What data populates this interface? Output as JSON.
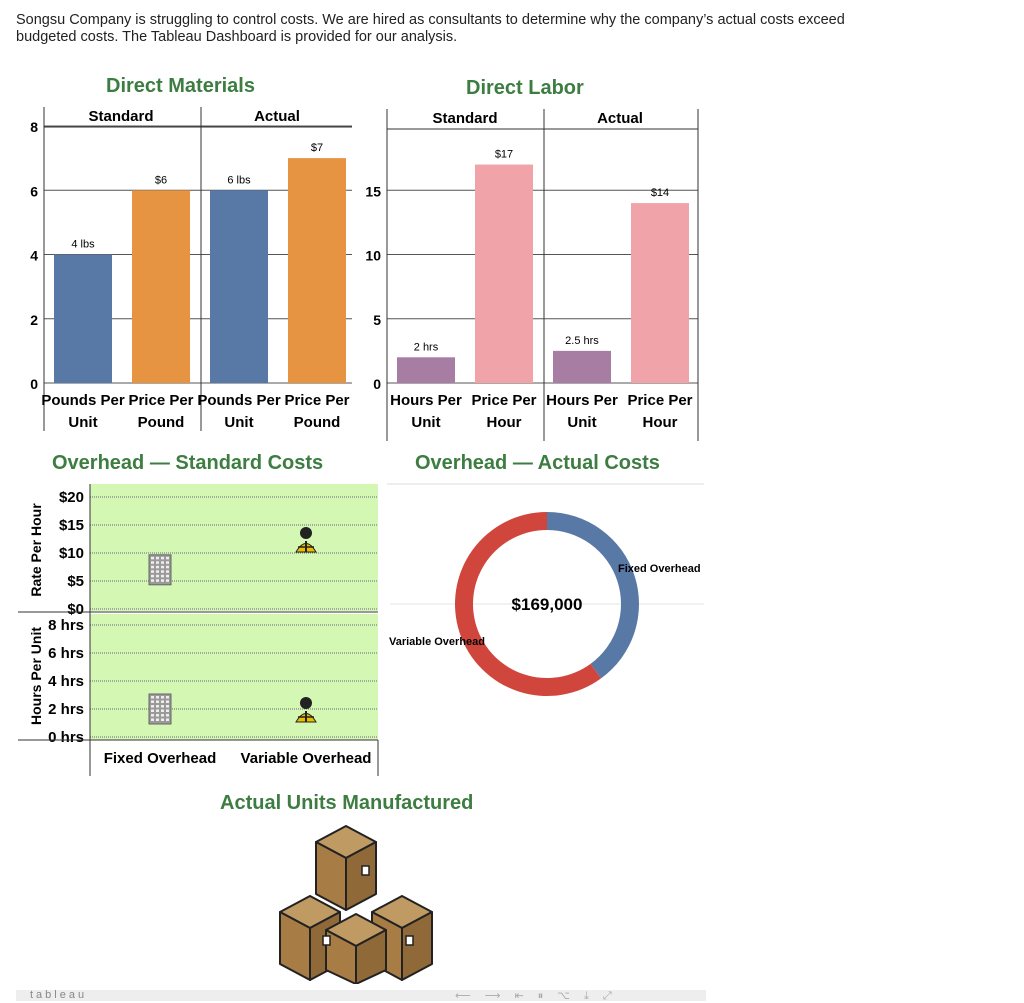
{
  "intro": "Songsu Company is struggling to control costs. We are hired as consultants to determine why the company’s actual costs exceed budgeted costs. The Tableau Dashboard is provided for our analysis.",
  "colors": {
    "title_green": "#3d7d42",
    "blue": "#5878a5",
    "orange": "#e69442",
    "pink": "#f0a3a8",
    "purple": "#a77da4",
    "red": "#d0463d",
    "green_bg": "#d4f8b4"
  },
  "chart_data": [
    {
      "id": "direct_materials",
      "type": "bar",
      "title": "Direct Materials",
      "groups": [
        "Standard",
        "Actual"
      ],
      "categories": [
        "Pounds Per Unit",
        "Price Per Pound",
        "Pounds Per Unit",
        "Price Per Pound"
      ],
      "values": [
        4,
        6,
        6,
        7
      ],
      "data_labels": [
        "4 lbs",
        "$6",
        "6 lbs",
        "$7"
      ],
      "bar_colors": [
        "blue",
        "orange",
        "blue",
        "orange"
      ],
      "ylim": [
        0,
        8
      ],
      "yticks": [
        0,
        2,
        4,
        6,
        8
      ],
      "ytick_labels": [
        "0",
        "2",
        "4",
        "6",
        "8"
      ]
    },
    {
      "id": "direct_labor",
      "type": "bar",
      "title": "Direct Labor",
      "groups": [
        "Standard",
        "Actual"
      ],
      "categories": [
        "Hours Per Unit",
        "Price Per Hour",
        "Hours Per Unit",
        "Price Per Hour"
      ],
      "values": [
        2,
        17,
        2.5,
        14
      ],
      "data_labels": [
        "2 hrs",
        "$17",
        "2.5 hrs",
        "$14"
      ],
      "bar_colors": [
        "purple",
        "pink",
        "purple",
        "pink"
      ],
      "ylim": [
        0,
        20
      ],
      "yticks": [
        0,
        5,
        10,
        15
      ],
      "ytick_labels": [
        "0",
        "5",
        "10",
        "15"
      ]
    },
    {
      "id": "overhead_standard",
      "type": "scatter",
      "title": "Overhead — Standard Costs",
      "categories": [
        "Fixed Overhead",
        "Variable Overhead"
      ],
      "rate_axis": {
        "label": "Rate Per Hour",
        "ticks": [
          0,
          5,
          10,
          15,
          20
        ],
        "tick_labels": [
          "$0",
          "$5",
          "$10",
          "$15",
          "$20"
        ],
        "values": [
          7,
          12.5
        ]
      },
      "hours_axis": {
        "label": "Hours Per Unit",
        "ticks": [
          0,
          2,
          4,
          6,
          8
        ],
        "tick_labels": [
          "0 hrs",
          "2 hrs",
          "4 hrs",
          "6 hrs",
          "8 hrs"
        ],
        "values": [
          2,
          2
        ]
      }
    },
    {
      "id": "overhead_actual",
      "type": "pie",
      "title": "Overhead — Actual Costs",
      "center_label": "$169,000",
      "labels": [
        "Fixed Overhead",
        "Variable Overhead"
      ],
      "values": [
        40,
        60
      ],
      "slice_colors": [
        "blue",
        "red"
      ]
    }
  ],
  "units_title": "Actual Units Manufactured",
  "footer": {
    "brand": "tableau",
    "icons": [
      "undo-icon",
      "redo-icon",
      "revert-icon",
      "pause-icon",
      "share-icon",
      "download-icon",
      "fullscreen-icon"
    ]
  }
}
